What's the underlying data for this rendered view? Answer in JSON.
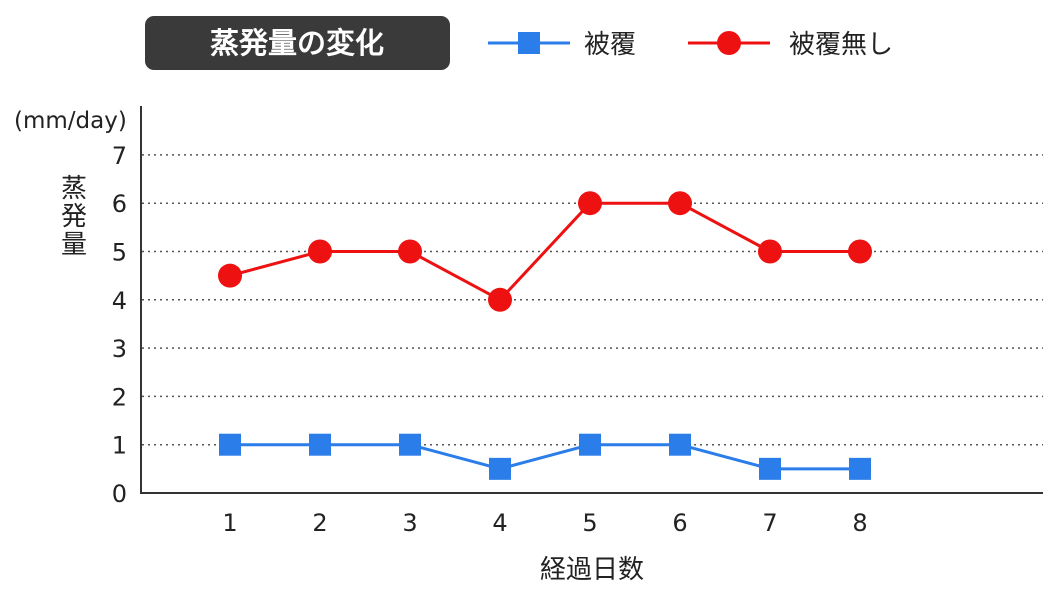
{
  "chart_data": {
    "type": "line",
    "title": "蒸発量の変化",
    "xlabel": "経過日数",
    "ylabel": "蒸発量",
    "y_unit": "(mm/day)",
    "categories": [
      "1",
      "2",
      "3",
      "4",
      "5",
      "6",
      "7",
      "8"
    ],
    "ylim": [
      0,
      7
    ],
    "yticks": [
      0,
      1,
      2,
      3,
      4,
      5,
      6,
      7
    ],
    "grid": true,
    "legend_position": "top",
    "series": [
      {
        "name": "被覆",
        "marker": "square",
        "color": "#2b7de9",
        "values": [
          1,
          1,
          1,
          0.5,
          1,
          1,
          0.5,
          0.5
        ]
      },
      {
        "name": "被覆無し",
        "marker": "circle",
        "color": "#ee1111",
        "values": [
          4.5,
          5,
          5,
          4,
          6,
          6,
          5,
          5
        ]
      }
    ]
  }
}
